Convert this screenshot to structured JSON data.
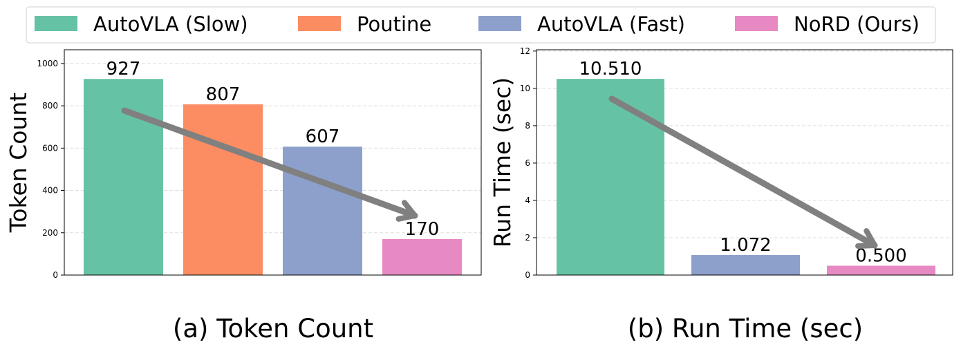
{
  "legend": {
    "placement": "top-center",
    "entries": [
      {
        "label": "AutoVLA (Slow)",
        "color": "#66c2a5"
      },
      {
        "label": "Poutine",
        "color": "#fc8d62"
      },
      {
        "label": "AutoVLA (Fast)",
        "color": "#8da0cb"
      },
      {
        "label": "NoRD (Ours)",
        "color": "#e78ac3"
      }
    ]
  },
  "chart_data": [
    {
      "type": "bar",
      "title": "(a) Token Count",
      "xlabel": "",
      "ylabel": "Token Count",
      "categories": [
        "AutoVLA (Slow)",
        "Poutine",
        "AutoVLA (Fast)",
        "NoRD (Ours)"
      ],
      "values": [
        927,
        807,
        607,
        170
      ],
      "data_labels": [
        "927",
        "807",
        "607",
        "170"
      ],
      "colors": [
        "#66c2a5",
        "#fc8d62",
        "#8da0cb",
        "#e78ac3"
      ],
      "ylim": [
        0,
        1065
      ],
      "yticks": [
        0,
        200,
        400,
        600,
        800,
        1000
      ],
      "grid": "y-dashed",
      "arrow": {
        "from_value": 775,
        "to_value": 290,
        "color": "#808080"
      }
    },
    {
      "type": "bar",
      "title": "(b) Run Time (sec)",
      "xlabel": "",
      "ylabel": "Run Time (sec)",
      "categories": [
        "AutoVLA (Slow)",
        "AutoVLA (Fast)",
        "NoRD (Ours)"
      ],
      "values": [
        10.51,
        1.072,
        0.5
      ],
      "data_labels": [
        "10.510",
        "1.072",
        "0.500"
      ],
      "colors": [
        "#66c2a5",
        "#8da0cb",
        "#e78ac3"
      ],
      "ylim": [
        0,
        12.07
      ],
      "yticks": [
        0,
        2,
        4,
        6,
        8,
        10,
        12
      ],
      "grid": "y-dashed",
      "arrow": {
        "from_value": 9.5,
        "to_value": 1.5,
        "color": "#808080"
      }
    }
  ]
}
